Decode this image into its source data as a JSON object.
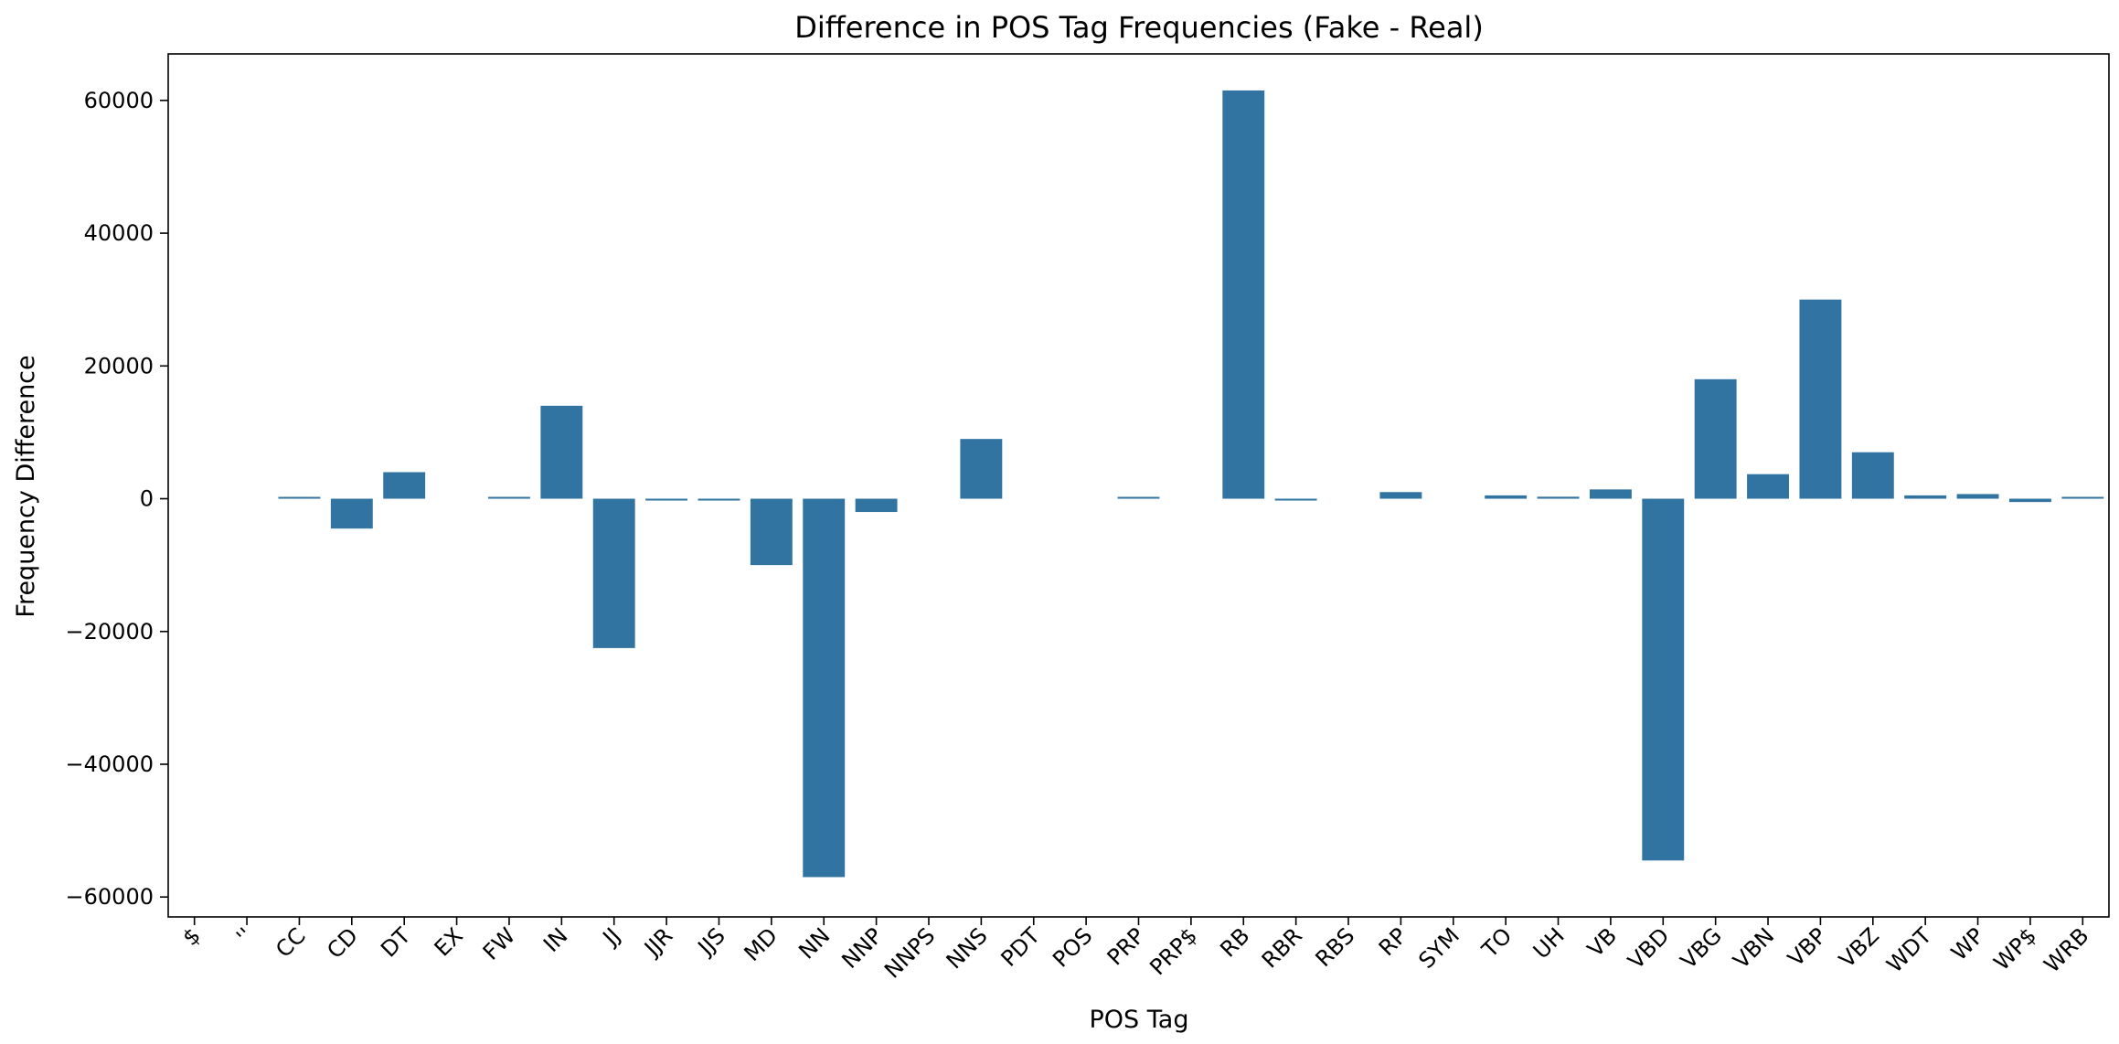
{
  "chart_data": {
    "type": "bar",
    "title": "Difference in POS Tag Frequencies (Fake - Real)",
    "xlabel": "POS Tag",
    "ylabel": "Frequency Difference",
    "ylim": [
      -63000,
      67000
    ],
    "yticks": [
      -60000,
      -40000,
      -20000,
      0,
      20000,
      40000,
      60000
    ],
    "grid": false,
    "color": "#3274a1",
    "categories": [
      "$",
      "''",
      "CC",
      "CD",
      "DT",
      "EX",
      "FW",
      "IN",
      "JJ",
      "JJR",
      "JJS",
      "MD",
      "NN",
      "NNP",
      "NNPS",
      "NNS",
      "PDT",
      "POS",
      "PRP",
      "PRP$",
      "RB",
      "RBR",
      "RBS",
      "RP",
      "SYM",
      "TO",
      "UH",
      "VB",
      "VBD",
      "VBG",
      "VBN",
      "VBP",
      "VBZ",
      "WDT",
      "WP",
      "WP$",
      "WRB"
    ],
    "values": [
      0,
      0,
      200,
      -4500,
      4000,
      0,
      200,
      14000,
      -22500,
      -200,
      -200,
      -10000,
      -57000,
      -2000,
      0,
      9000,
      0,
      0,
      200,
      0,
      61500,
      -200,
      0,
      1000,
      0,
      500,
      300,
      1400,
      -54500,
      18000,
      3700,
      30000,
      7000,
      500,
      700,
      -500,
      200
    ]
  }
}
